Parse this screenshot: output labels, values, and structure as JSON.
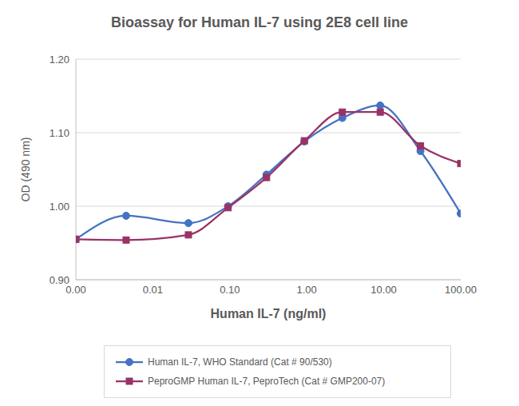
{
  "chart_data": {
    "type": "line",
    "title": "Bioassay for Human IL-7 using 2E8 cell line",
    "x_label": "Human IL-7 (ng/ml)",
    "y_label": "OD (490 nm)",
    "x": [
      0.001,
      0.0045,
      0.029,
      0.095,
      0.3,
      0.93,
      2.9,
      9,
      30,
      100
    ],
    "series": [
      {
        "name": "Human IL-7, WHO Standard (Cat # 90/530)",
        "color": "#4472c4",
        "marker": "circle",
        "values": [
          0.955,
          0.987,
          0.977,
          1.0,
          1.043,
          1.088,
          1.12,
          1.137,
          1.075,
          0.99
        ]
      },
      {
        "name": "PeproGMP Human IL-7, PeproTech (Cat # GMP200-07)",
        "color": "#993366",
        "marker": "square",
        "values": [
          0.955,
          0.954,
          0.961,
          0.998,
          1.039,
          1.089,
          1.128,
          1.128,
          1.082,
          1.058
        ]
      }
    ],
    "xlim": [
      0.001,
      100
    ],
    "xticks": [
      {
        "value": 0.001,
        "label": "0.00"
      },
      {
        "value": 0.01,
        "label": "0.01"
      },
      {
        "value": 0.1,
        "label": "0.10"
      },
      {
        "value": 1,
        "label": "1.00"
      },
      {
        "value": 10,
        "label": "10.00"
      },
      {
        "value": 100,
        "label": "100.00"
      }
    ],
    "ylim": [
      0.9,
      1.2
    ],
    "yticks": [
      {
        "value": 0.9,
        "label": "0.90"
      },
      {
        "value": 1.0,
        "label": "1.00"
      },
      {
        "value": 1.1,
        "label": "1.10"
      },
      {
        "value": 1.2,
        "label": "1.20"
      }
    ],
    "log": "x",
    "grid": true,
    "legend": "bottom",
    "line_style": "smooth"
  }
}
